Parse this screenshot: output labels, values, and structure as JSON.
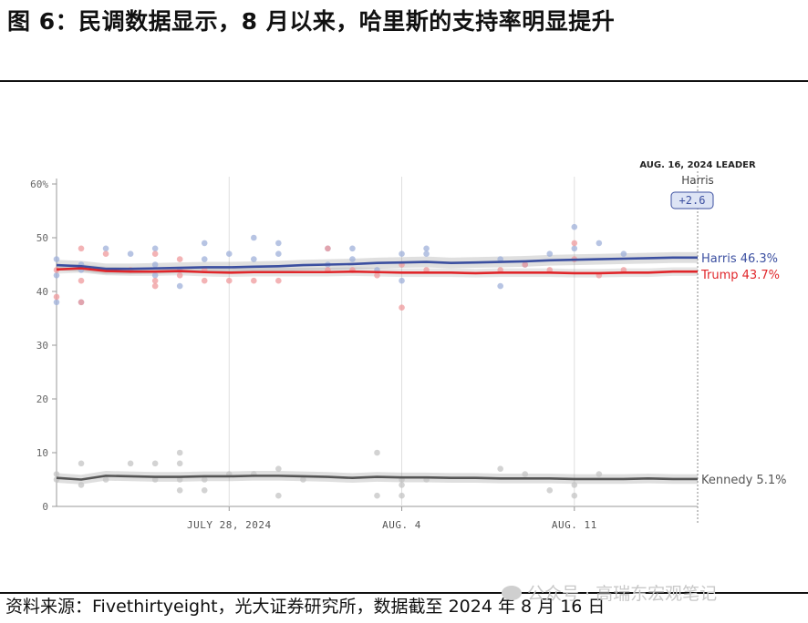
{
  "figure": {
    "title": "图 6：民调数据显示，8 月以来，哈里斯的支持率明显提升",
    "source": "资料来源：Fivethirtyeight，光大证券研究所，数据截至 2024 年 8 月 16 日",
    "watermark": "公众号 · 高瑞东宏观笔记"
  },
  "chart_data": {
    "type": "line",
    "x": [
      "2024-07-21",
      "2024-07-22",
      "2024-07-23",
      "2024-07-24",
      "2024-07-25",
      "2024-07-26",
      "2024-07-27",
      "2024-07-28",
      "2024-07-29",
      "2024-07-30",
      "2024-07-31",
      "2024-08-01",
      "2024-08-02",
      "2024-08-03",
      "2024-08-04",
      "2024-08-05",
      "2024-08-06",
      "2024-08-07",
      "2024-08-08",
      "2024-08-09",
      "2024-08-10",
      "2024-08-11",
      "2024-08-12",
      "2024-08-13",
      "2024-08-14",
      "2024-08-15",
      "2024-08-16"
    ],
    "xtick_labels": [
      {
        "x": "2024-07-28",
        "label": "JULY 28, 2024"
      },
      {
        "x": "2024-08-04",
        "label": "AUG. 4"
      },
      {
        "x": "2024-08-11",
        "label": "AUG. 11"
      }
    ],
    "ylim": [
      0,
      60
    ],
    "yticks": [
      0,
      10,
      20,
      30,
      40,
      50,
      60
    ],
    "ytick_labels": [
      "0",
      "10",
      "20",
      "30",
      "40",
      "50",
      "60%"
    ],
    "grid": "vertical lines at x tick labels",
    "series": [
      {
        "name": "Harris",
        "color": "#3b4fa0",
        "end_label": "Harris 46.3%",
        "values": [
          44.9,
          44.7,
          44.2,
          44.2,
          44.3,
          44.4,
          44.5,
          44.5,
          44.6,
          44.7,
          44.9,
          45.0,
          45.1,
          45.3,
          45.4,
          45.5,
          45.3,
          45.4,
          45.5,
          45.6,
          45.8,
          45.9,
          46.0,
          46.1,
          46.2,
          46.3,
          46.3
        ],
        "polls": [
          [
            0,
            46
          ],
          [
            0,
            43
          ],
          [
            0,
            38
          ],
          [
            1,
            45
          ],
          [
            1,
            44
          ],
          [
            1,
            38
          ],
          [
            2,
            48
          ],
          [
            3,
            47
          ],
          [
            4,
            45
          ],
          [
            4,
            48
          ],
          [
            4,
            43
          ],
          [
            5,
            44
          ],
          [
            5,
            41
          ],
          [
            6,
            49
          ],
          [
            6,
            46
          ],
          [
            7,
            47
          ],
          [
            8,
            50
          ],
          [
            8,
            46
          ],
          [
            9,
            49
          ],
          [
            9,
            47
          ],
          [
            11,
            48
          ],
          [
            11,
            45
          ],
          [
            12,
            48
          ],
          [
            12,
            46
          ],
          [
            13,
            44
          ],
          [
            14,
            47
          ],
          [
            14,
            42
          ],
          [
            15,
            48
          ],
          [
            15,
            47
          ],
          [
            18,
            46
          ],
          [
            18,
            41
          ],
          [
            19,
            45
          ],
          [
            20,
            47
          ],
          [
            21,
            52
          ],
          [
            21,
            48
          ],
          [
            22,
            49
          ],
          [
            23,
            47
          ]
        ]
      },
      {
        "name": "Trump",
        "color": "#e0262a",
        "end_label": "Trump 43.7%",
        "values": [
          44.1,
          44.3,
          43.8,
          43.7,
          43.7,
          43.8,
          43.6,
          43.5,
          43.6,
          43.6,
          43.6,
          43.6,
          43.7,
          43.6,
          43.5,
          43.5,
          43.5,
          43.4,
          43.5,
          43.5,
          43.5,
          43.4,
          43.4,
          43.5,
          43.5,
          43.7,
          43.7
        ],
        "polls": [
          [
            0,
            44
          ],
          [
            0,
            39
          ],
          [
            1,
            48
          ],
          [
            1,
            42
          ],
          [
            1,
            38
          ],
          [
            2,
            47
          ],
          [
            3,
            44
          ],
          [
            4,
            42
          ],
          [
            4,
            41
          ],
          [
            4,
            47
          ],
          [
            5,
            46
          ],
          [
            5,
            43
          ],
          [
            6,
            44
          ],
          [
            6,
            42
          ],
          [
            7,
            42
          ],
          [
            8,
            42
          ],
          [
            9,
            42
          ],
          [
            11,
            48
          ],
          [
            11,
            44
          ],
          [
            12,
            44
          ],
          [
            13,
            43
          ],
          [
            14,
            45
          ],
          [
            14,
            37
          ],
          [
            15,
            44
          ],
          [
            18,
            44
          ],
          [
            19,
            45
          ],
          [
            20,
            44
          ],
          [
            21,
            49
          ],
          [
            21,
            46
          ],
          [
            22,
            43
          ],
          [
            23,
            44
          ]
        ]
      },
      {
        "name": "Kennedy",
        "color": "#555555",
        "end_label": "Kennedy 5.1%",
        "values": [
          5.3,
          5.0,
          5.7,
          5.6,
          5.5,
          5.5,
          5.6,
          5.6,
          5.7,
          5.7,
          5.6,
          5.5,
          5.3,
          5.5,
          5.4,
          5.4,
          5.3,
          5.3,
          5.2,
          5.2,
          5.2,
          5.1,
          5.1,
          5.1,
          5.2,
          5.1,
          5.1
        ],
        "polls": [
          [
            0,
            6
          ],
          [
            0,
            5
          ],
          [
            1,
            8
          ],
          [
            1,
            4
          ],
          [
            2,
            5
          ],
          [
            3,
            8
          ],
          [
            4,
            8
          ],
          [
            4,
            5
          ],
          [
            5,
            10
          ],
          [
            5,
            8
          ],
          [
            5,
            5
          ],
          [
            5,
            3
          ],
          [
            6,
            5
          ],
          [
            6,
            3
          ],
          [
            7,
            6
          ],
          [
            8,
            6
          ],
          [
            9,
            7
          ],
          [
            9,
            2
          ],
          [
            10,
            5
          ],
          [
            13,
            10
          ],
          [
            13,
            2
          ],
          [
            14,
            5
          ],
          [
            14,
            4
          ],
          [
            14,
            2
          ],
          [
            15,
            5
          ],
          [
            18,
            7
          ],
          [
            19,
            6
          ],
          [
            20,
            3
          ],
          [
            21,
            4
          ],
          [
            21,
            2
          ],
          [
            22,
            6
          ]
        ]
      }
    ],
    "leader": {
      "heading": "AUG. 16, 2024 LEADER",
      "name": "Harris",
      "margin": "+2.6"
    }
  }
}
